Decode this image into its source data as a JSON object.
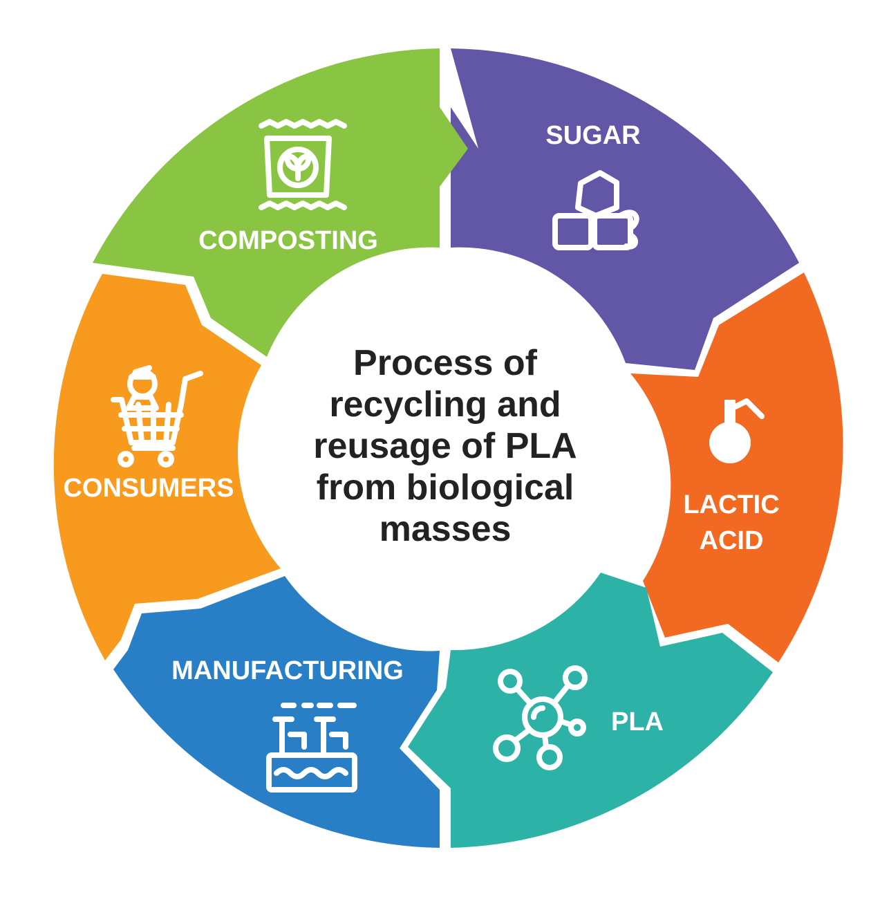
{
  "title_lines": [
    "Process of",
    "recycling and",
    "reusage of PLA",
    "from biological",
    "masses"
  ],
  "segments": [
    {
      "id": "sugar",
      "label_lines": [
        "SUGAR"
      ],
      "color": "#6256a6",
      "icon": "sugar-cubes-icon"
    },
    {
      "id": "lactic-acid",
      "label_lines": [
        "LACTIC",
        "ACID"
      ],
      "color": "#f26a22",
      "icon": "flask-icon"
    },
    {
      "id": "pla",
      "label_lines": [
        "PLA"
      ],
      "color": "#2cb2a6",
      "icon": "molecule-icon"
    },
    {
      "id": "manufacturing",
      "label_lines": [
        "MANUFACTURING"
      ],
      "color": "#297fc5",
      "icon": "factory-icon"
    },
    {
      "id": "consumers",
      "label_lines": [
        "CONSUMERS"
      ],
      "color": "#f89a1e",
      "icon": "shopping-cart-icon"
    },
    {
      "id": "composting",
      "label_lines": [
        "COMPOSTING"
      ],
      "color": "#89c442",
      "icon": "compost-bag-icon"
    }
  ]
}
